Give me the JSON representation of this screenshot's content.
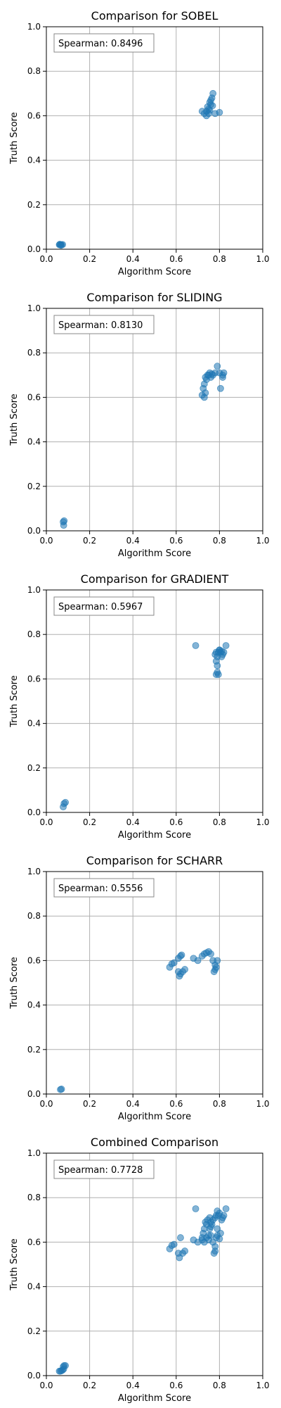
{
  "colors": {
    "point": "#1f77b4",
    "grid": "#b0b0b0",
    "axis": "#000000",
    "background": "#ffffff"
  },
  "chart_data": [
    {
      "type": "scatter",
      "title": "Comparison for SOBEL",
      "xlabel": "Algorithm Score",
      "ylabel": "Truth Score",
      "xlim": [
        0.0,
        1.0
      ],
      "ylim": [
        0.0,
        1.0
      ],
      "xticks": [
        "0.0",
        "0.2",
        "0.4",
        "0.6",
        "0.8",
        "1.0"
      ],
      "yticks": [
        "0.0",
        "0.2",
        "0.4",
        "0.6",
        "0.8",
        "1.0"
      ],
      "grid": true,
      "annotation": "Spearman: 0.8496",
      "points": [
        [
          0.06,
          0.02
        ],
        [
          0.065,
          0.02
        ],
        [
          0.07,
          0.02
        ],
        [
          0.062,
          0.022
        ],
        [
          0.068,
          0.018
        ],
        [
          0.075,
          0.021
        ],
        [
          0.72,
          0.62
        ],
        [
          0.73,
          0.61
        ],
        [
          0.74,
          0.62
        ],
        [
          0.75,
          0.63
        ],
        [
          0.745,
          0.64
        ],
        [
          0.755,
          0.66
        ],
        [
          0.76,
          0.67
        ],
        [
          0.765,
          0.68
        ],
        [
          0.77,
          0.7
        ],
        [
          0.76,
          0.65
        ],
        [
          0.75,
          0.61
        ],
        [
          0.78,
          0.61
        ],
        [
          0.8,
          0.615
        ],
        [
          0.74,
          0.6
        ],
        [
          0.755,
          0.625
        ],
        [
          0.768,
          0.645
        ]
      ]
    },
    {
      "type": "scatter",
      "title": "Comparison for SLIDING",
      "xlabel": "Algorithm Score",
      "ylabel": "Truth Score",
      "xlim": [
        0.0,
        1.0
      ],
      "ylim": [
        0.0,
        1.0
      ],
      "xticks": [
        "0.0",
        "0.2",
        "0.4",
        "0.6",
        "0.8",
        "1.0"
      ],
      "yticks": [
        "0.0",
        "0.2",
        "0.4",
        "0.6",
        "0.8",
        "1.0"
      ],
      "grid": true,
      "annotation": "Spearman: 0.8130",
      "points": [
        [
          0.078,
          0.04
        ],
        [
          0.08,
          0.025
        ],
        [
          0.082,
          0.045
        ],
        [
          0.72,
          0.61
        ],
        [
          0.73,
          0.6
        ],
        [
          0.735,
          0.62
        ],
        [
          0.725,
          0.64
        ],
        [
          0.73,
          0.66
        ],
        [
          0.74,
          0.68
        ],
        [
          0.735,
          0.69
        ],
        [
          0.745,
          0.7
        ],
        [
          0.755,
          0.71
        ],
        [
          0.76,
          0.69
        ],
        [
          0.77,
          0.7
        ],
        [
          0.78,
          0.71
        ],
        [
          0.79,
          0.74
        ],
        [
          0.8,
          0.71
        ],
        [
          0.805,
          0.64
        ],
        [
          0.815,
          0.7
        ],
        [
          0.82,
          0.71
        ],
        [
          0.815,
          0.69
        ],
        [
          0.75,
          0.7
        ],
        [
          0.765,
          0.705
        ]
      ]
    },
    {
      "type": "scatter",
      "title": "Comparison for GRADIENT",
      "xlabel": "Algorithm Score",
      "ylabel": "Truth Score",
      "xlim": [
        0.0,
        1.0
      ],
      "ylim": [
        0.0,
        1.0
      ],
      "xticks": [
        "0.0",
        "0.2",
        "0.4",
        "0.6",
        "0.8",
        "1.0"
      ],
      "yticks": [
        "0.0",
        "0.2",
        "0.4",
        "0.6",
        "0.8",
        "1.0"
      ],
      "grid": true,
      "annotation": "Spearman: 0.5967",
      "points": [
        [
          0.078,
          0.025
        ],
        [
          0.082,
          0.04
        ],
        [
          0.088,
          0.045
        ],
        [
          0.69,
          0.75
        ],
        [
          0.78,
          0.71
        ],
        [
          0.785,
          0.72
        ],
        [
          0.79,
          0.7
        ],
        [
          0.795,
          0.72
        ],
        [
          0.8,
          0.73
        ],
        [
          0.805,
          0.72
        ],
        [
          0.81,
          0.7
        ],
        [
          0.815,
          0.71
        ],
        [
          0.82,
          0.72
        ],
        [
          0.83,
          0.75
        ],
        [
          0.785,
          0.68
        ],
        [
          0.79,
          0.66
        ],
        [
          0.79,
          0.63
        ],
        [
          0.785,
          0.62
        ],
        [
          0.795,
          0.62
        ],
        [
          0.8,
          0.73
        ],
        [
          0.81,
          0.725
        ]
      ]
    },
    {
      "type": "scatter",
      "title": "Comparison for SCHARR",
      "xlabel": "Algorithm Score",
      "ylabel": "Truth Score",
      "xlim": [
        0.0,
        1.0
      ],
      "ylim": [
        0.0,
        1.0
      ],
      "xticks": [
        "0.0",
        "0.2",
        "0.4",
        "0.6",
        "0.8",
        "1.0"
      ],
      "yticks": [
        "0.0",
        "0.2",
        "0.4",
        "0.6",
        "0.8",
        "1.0"
      ],
      "grid": true,
      "annotation": "Spearman: 0.5556",
      "points": [
        [
          0.065,
          0.02
        ],
        [
          0.07,
          0.022
        ],
        [
          0.57,
          0.57
        ],
        [
          0.58,
          0.585
        ],
        [
          0.59,
          0.59
        ],
        [
          0.61,
          0.61
        ],
        [
          0.62,
          0.62
        ],
        [
          0.625,
          0.625
        ],
        [
          0.61,
          0.55
        ],
        [
          0.615,
          0.53
        ],
        [
          0.62,
          0.54
        ],
        [
          0.63,
          0.55
        ],
        [
          0.64,
          0.56
        ],
        [
          0.68,
          0.61
        ],
        [
          0.7,
          0.6
        ],
        [
          0.72,
          0.62
        ],
        [
          0.73,
          0.63
        ],
        [
          0.74,
          0.635
        ],
        [
          0.75,
          0.64
        ],
        [
          0.76,
          0.63
        ],
        [
          0.77,
          0.6
        ],
        [
          0.78,
          0.58
        ],
        [
          0.78,
          0.56
        ],
        [
          0.79,
          0.6
        ],
        [
          0.785,
          0.57
        ],
        [
          0.775,
          0.55
        ]
      ]
    },
    {
      "type": "scatter",
      "title": "Combined Comparison",
      "xlabel": "Algorithm Score",
      "ylabel": "Truth Score",
      "xlim": [
        0.0,
        1.0
      ],
      "ylim": [
        0.0,
        1.0
      ],
      "xticks": [
        "0.0",
        "0.2",
        "0.4",
        "0.6",
        "0.8",
        "1.0"
      ],
      "yticks": [
        "0.0",
        "0.2",
        "0.4",
        "0.6",
        "0.8",
        "1.0"
      ],
      "grid": true,
      "annotation": "Spearman: 0.7728",
      "points": [
        [
          0.06,
          0.02
        ],
        [
          0.065,
          0.02
        ],
        [
          0.07,
          0.022
        ],
        [
          0.075,
          0.025
        ],
        [
          0.078,
          0.04
        ],
        [
          0.082,
          0.045
        ],
        [
          0.088,
          0.045
        ],
        [
          0.08,
          0.03
        ],
        [
          0.57,
          0.57
        ],
        [
          0.58,
          0.585
        ],
        [
          0.59,
          0.59
        ],
        [
          0.61,
          0.55
        ],
        [
          0.615,
          0.53
        ],
        [
          0.62,
          0.62
        ],
        [
          0.63,
          0.55
        ],
        [
          0.64,
          0.56
        ],
        [
          0.68,
          0.61
        ],
        [
          0.69,
          0.75
        ],
        [
          0.7,
          0.6
        ],
        [
          0.72,
          0.62
        ],
        [
          0.72,
          0.61
        ],
        [
          0.725,
          0.64
        ],
        [
          0.73,
          0.66
        ],
        [
          0.73,
          0.6
        ],
        [
          0.735,
          0.69
        ],
        [
          0.74,
          0.62
        ],
        [
          0.74,
          0.68
        ],
        [
          0.745,
          0.7
        ],
        [
          0.75,
          0.63
        ],
        [
          0.75,
          0.61
        ],
        [
          0.755,
          0.66
        ],
        [
          0.755,
          0.71
        ],
        [
          0.76,
          0.67
        ],
        [
          0.76,
          0.69
        ],
        [
          0.765,
          0.68
        ],
        [
          0.77,
          0.7
        ],
        [
          0.77,
          0.6
        ],
        [
          0.78,
          0.71
        ],
        [
          0.78,
          0.58
        ],
        [
          0.78,
          0.56
        ],
        [
          0.785,
          0.72
        ],
        [
          0.785,
          0.62
        ],
        [
          0.79,
          0.74
        ],
        [
          0.79,
          0.66
        ],
        [
          0.79,
          0.63
        ],
        [
          0.795,
          0.72
        ],
        [
          0.8,
          0.73
        ],
        [
          0.8,
          0.615
        ],
        [
          0.805,
          0.64
        ],
        [
          0.81,
          0.7
        ],
        [
          0.815,
          0.71
        ],
        [
          0.82,
          0.72
        ],
        [
          0.83,
          0.75
        ],
        [
          0.775,
          0.55
        ],
        [
          0.76,
          0.63
        ]
      ]
    }
  ]
}
